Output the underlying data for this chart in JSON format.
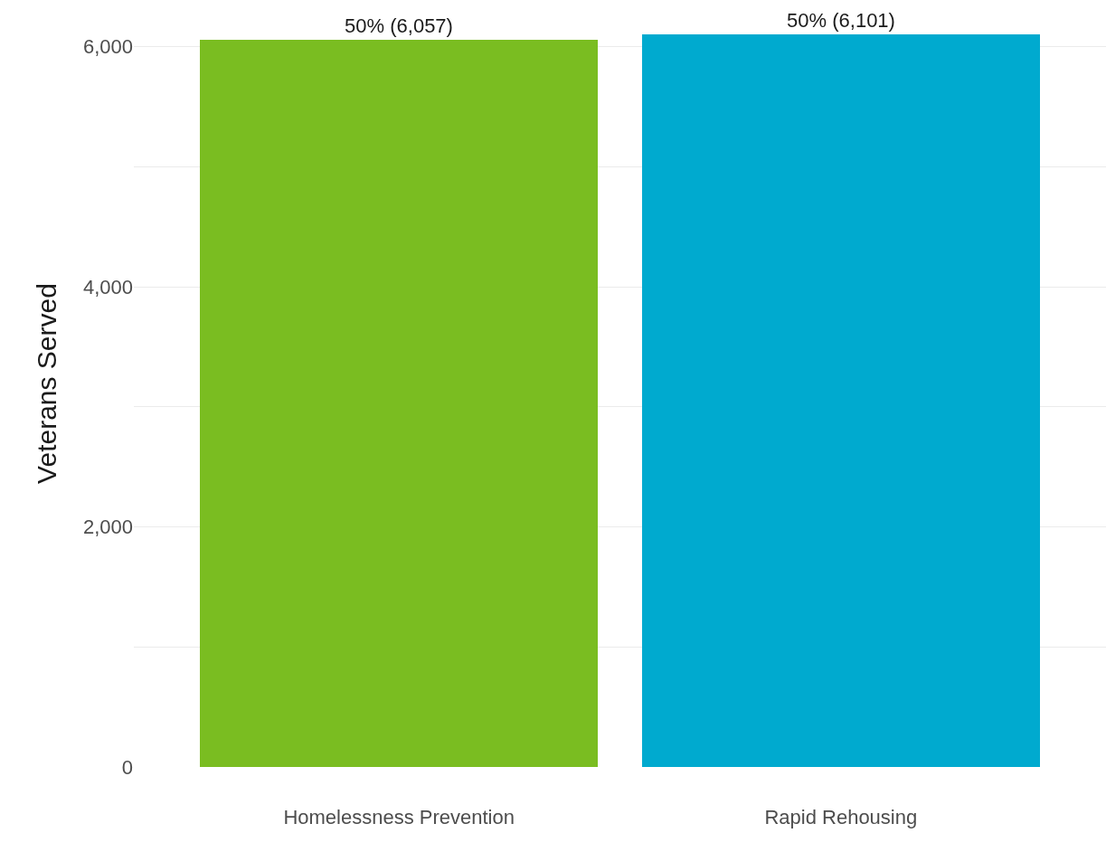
{
  "chart_data": {
    "type": "bar",
    "ylabel": "Veterans Served",
    "categories": [
      "Homelessness Prevention",
      "Rapid Rehousing"
    ],
    "values": [
      6057,
      6101
    ],
    "colors": [
      "#7abd21",
      "#00aacf"
    ],
    "value_labels": [
      "50% (6,057)",
      "50% (6,101)"
    ],
    "ylim": [
      0,
      6390
    ],
    "yticks": [
      {
        "value": 0,
        "label": "0"
      },
      {
        "value": 1000,
        "label": null
      },
      {
        "value": 2000,
        "label": "2,000"
      },
      {
        "value": 3000,
        "label": null
      },
      {
        "value": 4000,
        "label": "4,000"
      },
      {
        "value": 5000,
        "label": null
      },
      {
        "value": 6000,
        "label": "6,000"
      }
    ],
    "grid": true
  }
}
